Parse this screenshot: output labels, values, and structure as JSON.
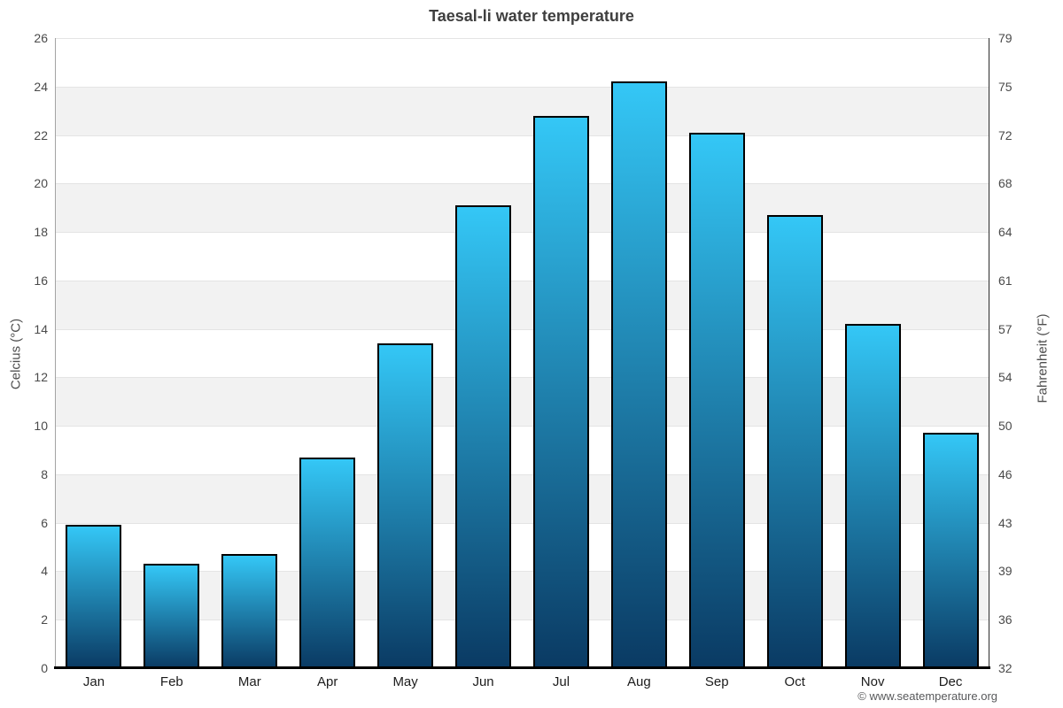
{
  "page": {
    "footer": "© www.seatemperature.org"
  },
  "chart_data": {
    "type": "bar",
    "title": "Taesal-li water temperature",
    "categories": [
      "Jan",
      "Feb",
      "Mar",
      "Apr",
      "May",
      "Jun",
      "Jul",
      "Aug",
      "Sep",
      "Oct",
      "Nov",
      "Dec"
    ],
    "values": [
      5.9,
      4.3,
      4.7,
      8.7,
      13.4,
      19.1,
      22.8,
      24.2,
      22.1,
      18.7,
      14.2,
      9.7
    ],
    "series_name": "Water temperature",
    "xlabel": "",
    "ylabel_left": "Celcius (°C)",
    "ylabel_right": "Fahrenheit (°F)",
    "ylim": [
      0,
      26
    ],
    "y_ticks_celsius": [
      0,
      2,
      4,
      6,
      8,
      10,
      12,
      14,
      16,
      18,
      20,
      22,
      24,
      26
    ],
    "y_ticks_fahrenheit": [
      32,
      36,
      39,
      43,
      46,
      50,
      54,
      57,
      61,
      64,
      68,
      72,
      75,
      79
    ],
    "grid": "on",
    "legend": "none",
    "colors": {
      "bar_gradient_top": "#34c7f6",
      "bar_gradient_bottom": "#0a3a63",
      "bar_border": "#000000",
      "band_fill": "#f2f2f2",
      "gridline": "#e4e4e4",
      "title_text": "#3f3f3f",
      "tick_text": "#4a4a4a"
    }
  }
}
